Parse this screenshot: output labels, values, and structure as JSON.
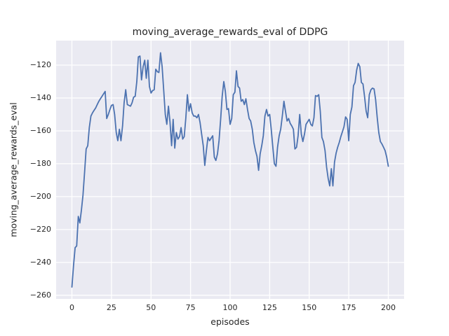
{
  "figure": {
    "title": "moving_average_rewards_eval of DDPG",
    "xlabel": "episodes",
    "ylabel": "moving_average_rewards_eval",
    "background_color": "#ffffff",
    "plot_background_color": "#eaeaf2",
    "grid_color": "#ffffff",
    "text_color": "#262626"
  },
  "chart_data": {
    "type": "line",
    "title": "moving_average_rewards_eval of DDPG",
    "xlabel": "episodes",
    "ylabel": "moving_average_rewards_eval",
    "xlim": [
      -10,
      210
    ],
    "ylim": [
      -262.2,
      -105.1
    ],
    "x_ticks": [
      0,
      25,
      50,
      75,
      100,
      125,
      150,
      175,
      200
    ],
    "x_tick_labels": [
      "0",
      "25",
      "50",
      "75",
      "100",
      "125",
      "150",
      "175",
      "200"
    ],
    "y_ticks": [
      -260,
      -240,
      -220,
      -200,
      -180,
      -160,
      -140,
      -120
    ],
    "y_tick_labels": [
      "−260",
      "−240",
      "−220",
      "−200",
      "−180",
      "−160",
      "−140",
      "−120"
    ],
    "grid": true,
    "legend": false,
    "series": [
      {
        "name": "moving_average_rewards_eval",
        "color": "#4c72b0",
        "line_width": 1.8,
        "x_start": 0,
        "x_step": 1,
        "values": [
          -255,
          -242,
          -231,
          -230,
          -212,
          -216,
          -208,
          -199,
          -185,
          -171,
          -169,
          -158,
          -151,
          -149,
          -147.5,
          -146,
          -144,
          -142,
          -140.5,
          -139,
          -137.5,
          -136,
          -152.5,
          -150,
          -147,
          -144.5,
          -144,
          -150,
          -161,
          -166,
          -159,
          -166,
          -157,
          -143,
          -135,
          -144,
          -144.5,
          -145,
          -143,
          -139.5,
          -139,
          -130,
          -115,
          -114.5,
          -129,
          -121,
          -117,
          -128,
          -117,
          -133,
          -137,
          -135.5,
          -135,
          -122.5,
          -124,
          -124.5,
          -112.5,
          -121,
          -135,
          -150,
          -156,
          -145,
          -154.5,
          -169,
          -153,
          -170.5,
          -161,
          -165,
          -163.5,
          -158,
          -165,
          -163.5,
          -152,
          -138,
          -148,
          -143.5,
          -149,
          -151,
          -151,
          -152,
          -150,
          -155,
          -162,
          -169,
          -181,
          -172,
          -164,
          -166,
          -164.5,
          -163,
          -176,
          -178,
          -174,
          -166,
          -153,
          -139,
          -130,
          -136,
          -147,
          -146.5,
          -156,
          -152.5,
          -138,
          -136.5,
          -123.5,
          -133,
          -134,
          -142,
          -141,
          -144,
          -140.5,
          -147,
          -152.5,
          -154,
          -159,
          -167,
          -172,
          -175.5,
          -184,
          -174,
          -169,
          -163,
          -151,
          -147,
          -151,
          -150,
          -159,
          -170,
          -180,
          -181.5,
          -170,
          -163,
          -159,
          -151,
          -142,
          -148,
          -154,
          -152.5,
          -155.5,
          -157,
          -159,
          -171,
          -170,
          -163,
          -150,
          -162,
          -166.5,
          -162,
          -156,
          -154.5,
          -153,
          -156,
          -157,
          -152,
          -138.5,
          -139,
          -138,
          -148,
          -164,
          -166.5,
          -172,
          -182,
          -189,
          -193.5,
          -183,
          -193.5,
          -179,
          -173.5,
          -170,
          -167,
          -163.5,
          -160.5,
          -157.5,
          -151.5,
          -153,
          -166,
          -150,
          -145.5,
          -132.5,
          -130.5,
          -123,
          -119,
          -121,
          -130.5,
          -131.5,
          -139,
          -148,
          -152,
          -138,
          -135,
          -134,
          -134.5,
          -141,
          -152,
          -161,
          -166.5,
          -168,
          -170,
          -172,
          -176,
          -181.5
        ]
      }
    ]
  }
}
